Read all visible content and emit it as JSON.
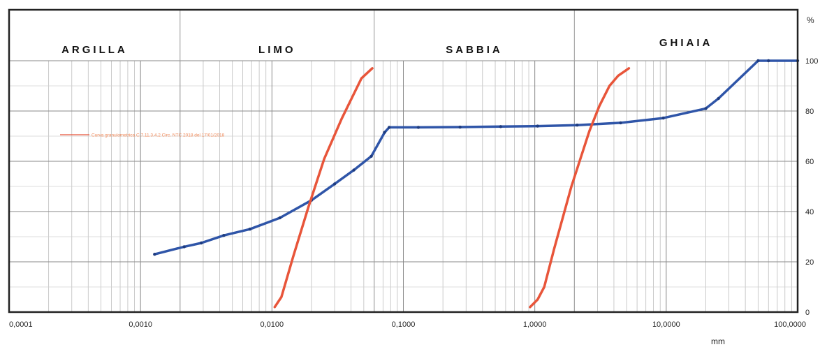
{
  "chart_data": {
    "type": "line",
    "x_scale": "log",
    "xlim": [
      0.0001,
      100
    ],
    "ylim": [
      0,
      100
    ],
    "x_tick_labels": [
      "0,0001",
      "0,0010",
      "0,0100",
      "0,1000",
      "1,0000",
      "10,0000",
      "100,0000"
    ],
    "x_tick_values": [
      0.0001,
      0.001,
      0.01,
      0.1,
      1,
      10,
      100
    ],
    "y_tick_labels": [
      "0",
      "20",
      "40",
      "60",
      "80",
      "100"
    ],
    "y_tick_values": [
      0,
      20,
      40,
      60,
      80,
      100
    ],
    "xlabel": "mm",
    "ylabel": "%",
    "zones": [
      {
        "label": "ARGILLA",
        "from": 0.0001,
        "to": 0.002
      },
      {
        "label": "LIMO",
        "from": 0.002,
        "to": 0.06
      },
      {
        "label": "SABBIA",
        "from": 0.06,
        "to": 2
      },
      {
        "label": "GHIAIA",
        "from": 2,
        "to": 100
      }
    ],
    "grid": true,
    "series": [
      {
        "color": "#2f55a8",
        "marker": "dot",
        "x": [
          0.00128,
          0.00215,
          0.0029,
          0.0043,
          0.0068,
          0.0115,
          0.02,
          0.03,
          0.042,
          0.057,
          0.072,
          0.078,
          0.13,
          0.27,
          0.55,
          1.05,
          2.1,
          4.5,
          9.5,
          20,
          25,
          50,
          60,
          100
        ],
        "y": [
          23,
          26,
          27.5,
          30.5,
          33,
          37.5,
          44.5,
          51,
          56.5,
          62,
          71.5,
          73.5,
          73.5,
          73.6,
          73.8,
          74,
          74.4,
          75.3,
          77.2,
          81,
          85,
          100,
          100,
          100
        ]
      },
      {
        "name": "Curva granulometrica C.7.11.3.4.2 Circ. NTC 2018 del 17/01/2018",
        "color": "#e8553a",
        "x": [
          0.0105,
          0.0118,
          0.0145,
          0.019,
          0.025,
          0.034,
          0.048,
          0.058
        ],
        "y": [
          2,
          6,
          22,
          42,
          61,
          77,
          93,
          97
        ],
        "legend_label": "Curva granulometrica C.7.11.3.4.2 Circ. NTC 2018 del 17/01/2018"
      },
      {
        "color": "#e8553a",
        "x": [
          0.92,
          1.05,
          1.18,
          1.4,
          1.9,
          2.6,
          3.1,
          3.7,
          4.3,
          5.2
        ],
        "y": [
          2,
          5,
          10,
          25,
          50,
          72,
          82,
          90,
          94,
          97
        ]
      }
    ],
    "legend_placement": "middle-left"
  }
}
